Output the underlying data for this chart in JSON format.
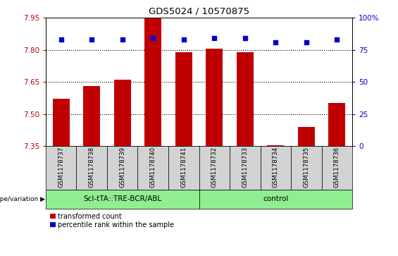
{
  "title": "GDS5024 / 10570875",
  "samples": [
    "GSM1178737",
    "GSM1178738",
    "GSM1178739",
    "GSM1178740",
    "GSM1178741",
    "GSM1178732",
    "GSM1178733",
    "GSM1178734",
    "GSM1178735",
    "GSM1178736"
  ],
  "bar_values": [
    7.57,
    7.63,
    7.66,
    7.95,
    7.79,
    7.805,
    7.79,
    7.352,
    7.44,
    7.55
  ],
  "percentile_values": [
    83,
    83,
    83,
    84,
    83,
    84,
    84,
    81,
    81,
    83
  ],
  "ylim_left": [
    7.35,
    7.95
  ],
  "ylim_right": [
    0,
    100
  ],
  "yticks_left": [
    7.35,
    7.5,
    7.65,
    7.8,
    7.95
  ],
  "yticks_right": [
    0,
    25,
    50,
    75,
    100
  ],
  "hlines": [
    7.8,
    7.65,
    7.5
  ],
  "group1_label": "ScI-tTA::TRE-BCR/ABL",
  "group2_label": "control",
  "group1_count": 5,
  "group2_count": 5,
  "bar_color": "#c00000",
  "percentile_color": "#0000cc",
  "group_bg": "#90ee90",
  "sample_bg": "#d3d3d3",
  "legend_label_bar": "transformed count",
  "legend_label_pct": "percentile rank within the sample",
  "genotype_label": "genotype/variation"
}
